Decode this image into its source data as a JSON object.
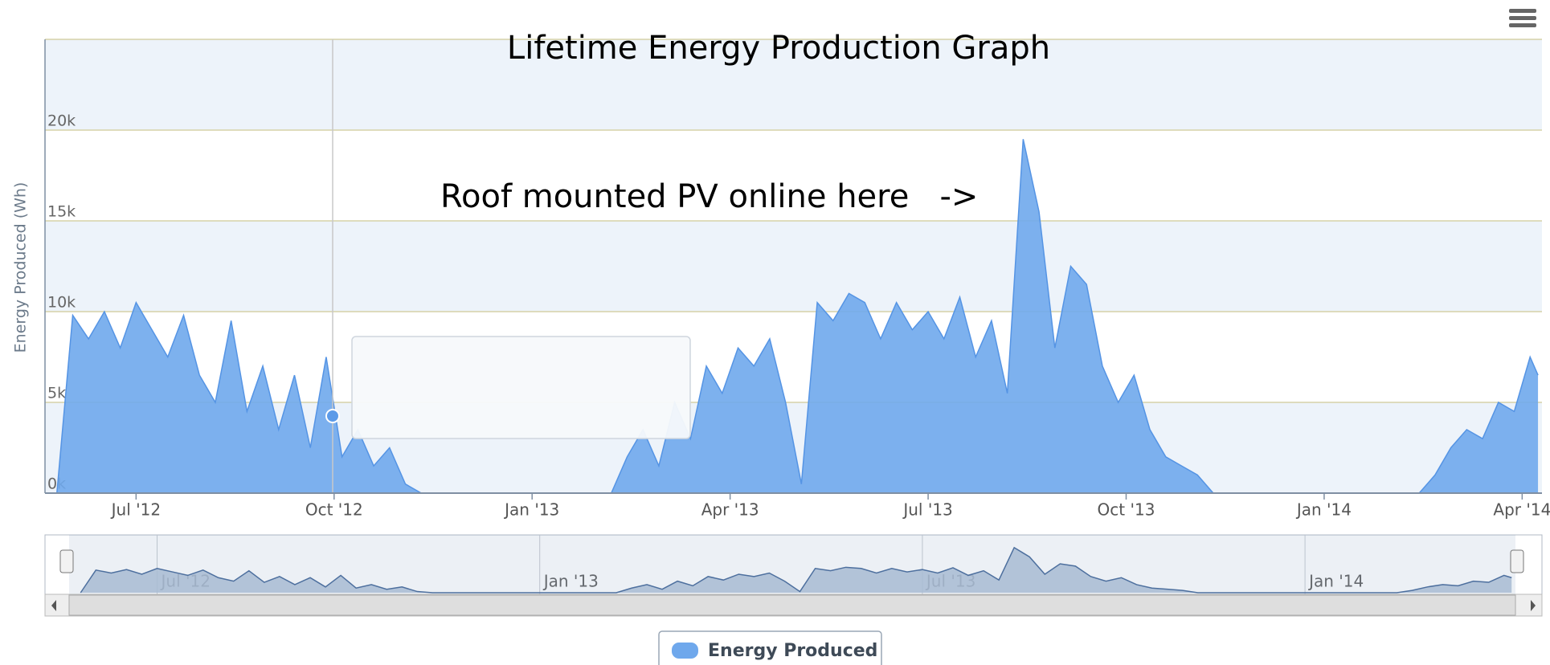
{
  "chart_data": {
    "type": "area",
    "title": "Lifetime Energy Production Graph",
    "annotation": "Roof mounted PV online here   ->",
    "y_axis_title": "Energy Produced (Wh)",
    "xlim": [
      2012.385,
      2014.275
    ],
    "xticks": [
      {
        "value": 2012.5,
        "label": "Jul '12"
      },
      {
        "value": 2012.75,
        "label": "Oct '12"
      },
      {
        "value": 2013.0,
        "label": "Jan '13"
      },
      {
        "value": 2013.25,
        "label": "Apr '13"
      },
      {
        "value": 2013.5,
        "label": "Jul '13"
      },
      {
        "value": 2013.75,
        "label": "Oct '13"
      },
      {
        "value": 2014.0,
        "label": "Jan '14"
      },
      {
        "value": 2014.25,
        "label": "Apr '14"
      }
    ],
    "ylim": [
      0,
      25000
    ],
    "yticks": [
      {
        "value": 0,
        "label": "0k"
      },
      {
        "value": 5000,
        "label": "5k"
      },
      {
        "value": 10000,
        "label": "10k"
      },
      {
        "value": 15000,
        "label": "15k"
      },
      {
        "value": 20000,
        "label": "20k"
      }
    ],
    "navigator_xticks": [
      {
        "value": 2012.5,
        "label": "Jul '12"
      },
      {
        "value": 2013.0,
        "label": "Jan '13"
      },
      {
        "value": 2013.5,
        "label": "Jul '13"
      },
      {
        "value": 2014.0,
        "label": "Jan '14"
      }
    ],
    "x": [
      2012.4,
      2012.42,
      2012.44,
      2012.46,
      2012.48,
      2012.5,
      2012.52,
      2012.54,
      2012.56,
      2012.58,
      2012.6,
      2012.62,
      2012.64,
      2012.66,
      2012.68,
      2012.7,
      2012.72,
      2012.74,
      2012.76,
      2012.78,
      2012.8,
      2012.82,
      2012.84,
      2012.86,
      2012.88,
      2012.9,
      2012.92,
      2012.94,
      2012.96,
      2012.98,
      2013.0,
      2013.02,
      2013.04,
      2013.06,
      2013.08,
      2013.1,
      2013.12,
      2013.14,
      2013.16,
      2013.18,
      2013.2,
      2013.22,
      2013.24,
      2013.26,
      2013.28,
      2013.3,
      2013.32,
      2013.34,
      2013.36,
      2013.38,
      2013.4,
      2013.42,
      2013.44,
      2013.46,
      2013.48,
      2013.5,
      2013.52,
      2013.54,
      2013.56,
      2013.58,
      2013.6,
      2013.62,
      2013.64,
      2013.66,
      2013.68,
      2013.7,
      2013.72,
      2013.74,
      2013.76,
      2013.78,
      2013.8,
      2013.82,
      2013.84,
      2013.86,
      2013.88,
      2013.9,
      2013.92,
      2013.94,
      2013.96,
      2013.98,
      2014.0,
      2014.02,
      2014.04,
      2014.06,
      2014.08,
      2014.1,
      2014.12,
      2014.14,
      2014.16,
      2014.18,
      2014.2,
      2014.22,
      2014.24,
      2014.26,
      2014.27
    ],
    "series": [
      {
        "name": "Energy Produced",
        "color": "#6fa8ec",
        "values": [
          0,
          9800,
          8500,
          10000,
          8000,
          10500,
          9000,
          7500,
          9800,
          6500,
          5000,
          9500,
          4500,
          7000,
          3500,
          6500,
          2500,
          7500,
          2000,
          3500,
          1500,
          2500,
          500,
          0,
          0,
          0,
          0,
          0,
          0,
          0,
          0,
          0,
          0,
          0,
          0,
          0,
          2000,
          3500,
          1500,
          5000,
          3000,
          7000,
          5500,
          8000,
          7000,
          8500,
          5000,
          500,
          10500,
          9500,
          11000,
          10500,
          8500,
          10500,
          9000,
          10000,
          8500,
          10800,
          7500,
          9500,
          5500,
          19500,
          15500,
          8000,
          12500,
          11500,
          7000,
          5000,
          6500,
          3500,
          2000,
          1500,
          1000,
          0,
          0,
          0,
          0,
          0,
          0,
          0,
          0,
          0,
          0,
          0,
          0,
          0,
          0,
          1000,
          2500,
          3500,
          3000,
          5000,
          4500,
          7500,
          6500
        ]
      }
    ],
    "grid": true
  }
}
